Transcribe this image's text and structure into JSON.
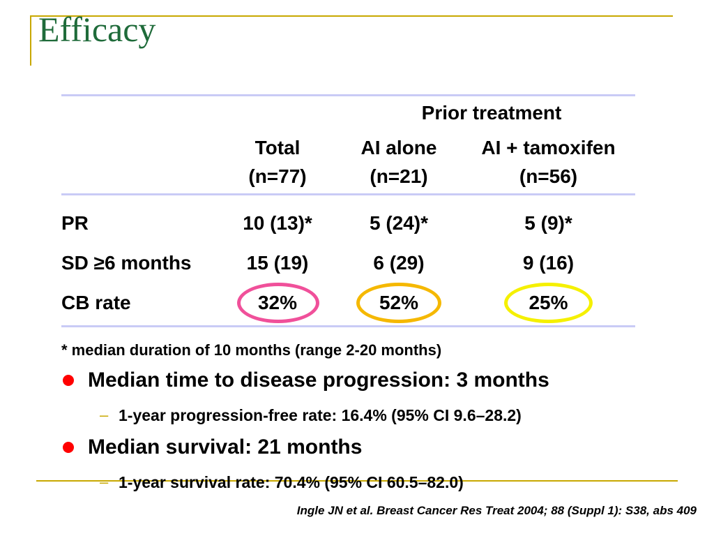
{
  "slide": {
    "title": "Efficacy",
    "accent_color": "#c8a800",
    "title_color": "#1f6b3a",
    "rule_color": "#c9cbf6"
  },
  "table": {
    "group_header": "Prior treatment",
    "columns": [
      {
        "label": "Total",
        "n": "(n=77)"
      },
      {
        "label": "AI alone",
        "n": "(n=21)"
      },
      {
        "label": "AI + tamoxifen",
        "n": "(n=56)"
      }
    ],
    "rows": [
      {
        "label": "PR",
        "values": [
          "10 (13)*",
          "5 (24)*",
          "5 (9)*"
        ]
      },
      {
        "label": "SD ≥6 months",
        "values": [
          "15 (19)",
          "6 (29)",
          "9 (16)"
        ]
      },
      {
        "label": "CB rate",
        "values": [
          "32%",
          "52%",
          "25%"
        ]
      }
    ],
    "highlight_colors": [
      "#f0509a",
      "#f5b800",
      "#f5f000"
    ]
  },
  "footnote": "* median duration of 10 months (range 2-20 months)",
  "bullets": [
    {
      "text": "Median time to disease progression: 3 months",
      "sub": "1-year progression-free rate: 16.4% (95% CI 9.6–28.2)"
    },
    {
      "text": "Median survival: 21 months",
      "sub": "1-year survival rate: 70.4% (95% CI 60.5–82.0)"
    }
  ],
  "bullet_color": "#ff0000",
  "dash_color": "#c8a800",
  "dash_glyph": "–",
  "citation": "Ingle JN et al. Breast Cancer Res Treat 2004; 88 (Suppl 1): S38, abs 409"
}
